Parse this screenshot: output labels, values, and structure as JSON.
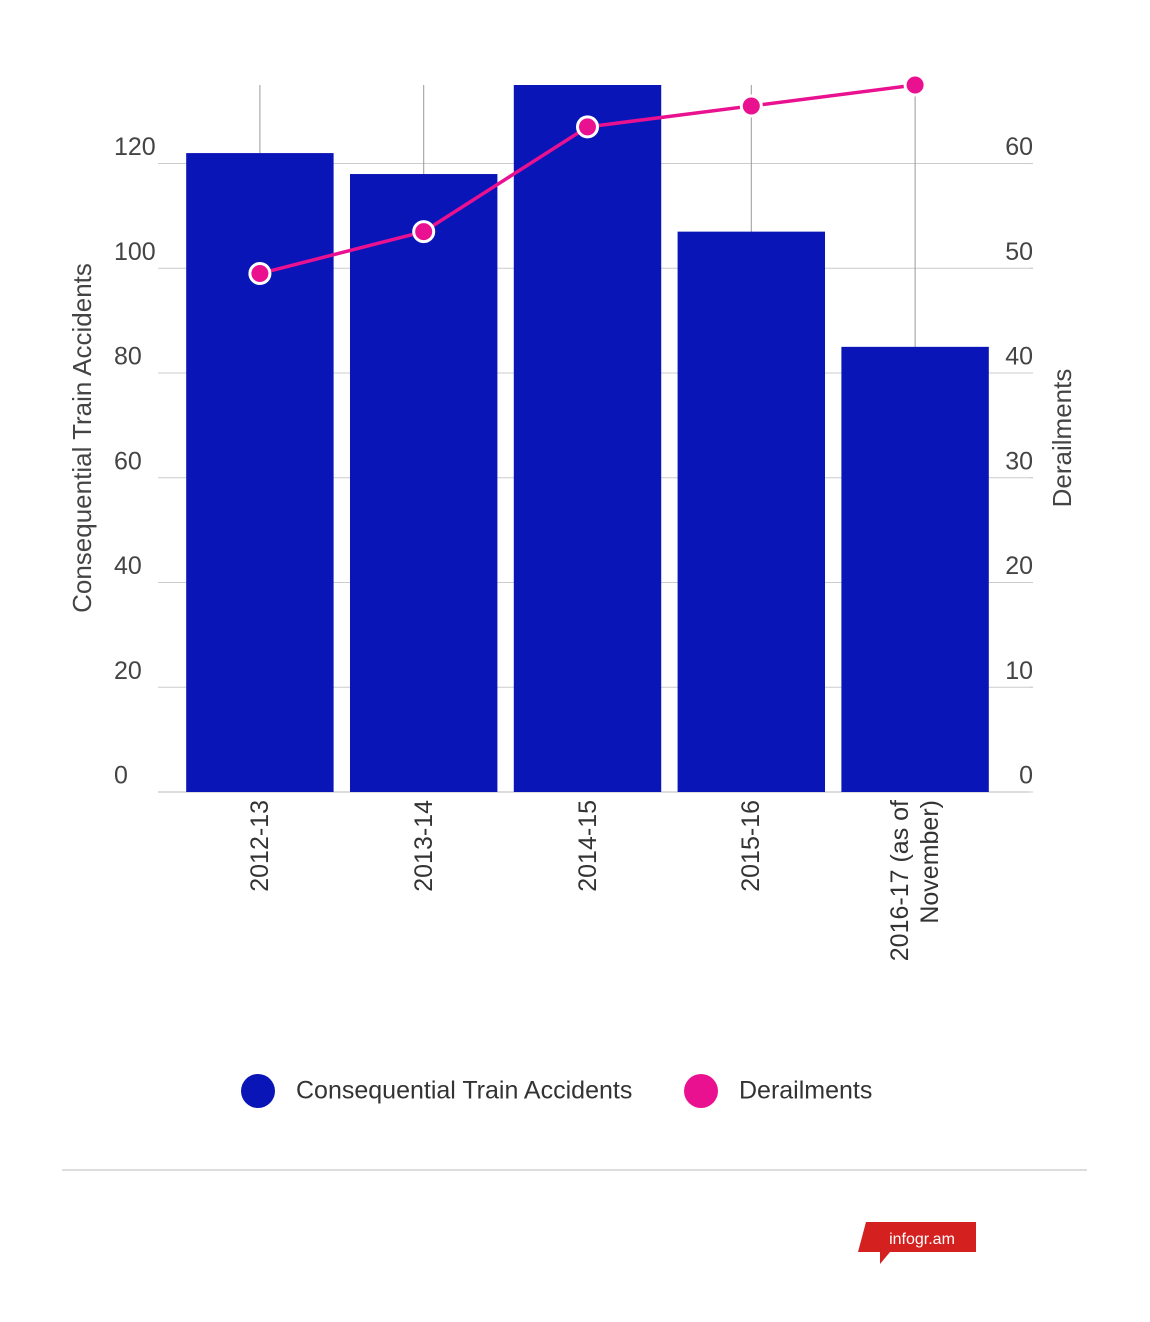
{
  "chart_data": {
    "type": "bar-line",
    "categories": [
      "2012-13",
      "2013-14",
      "2014-15",
      "2015-16",
      "2016-17 (as of November)"
    ],
    "series": [
      {
        "name": "Consequential Train Accidents",
        "color": "#0a15b8",
        "type": "bar",
        "values": [
          122,
          118,
          135,
          107,
          85
        ]
      },
      {
        "name": "Derailments",
        "color": "#ea1190",
        "type": "line",
        "axis": "y2",
        "values": [
          49.5,
          53.5,
          63.5,
          65.5,
          67.5
        ]
      }
    ],
    "ylabel": "Consequential Train Accidents",
    "y2label": "Derailments",
    "ylim": [
      0,
      135
    ],
    "yticks": [
      0,
      20,
      40,
      60,
      80,
      100,
      120
    ],
    "y2lim": [
      0,
      67.5
    ],
    "y2ticks": [
      0,
      10,
      20,
      30,
      40,
      50,
      60
    ],
    "grid": true
  },
  "footer": {
    "logo": "infogr.am"
  }
}
